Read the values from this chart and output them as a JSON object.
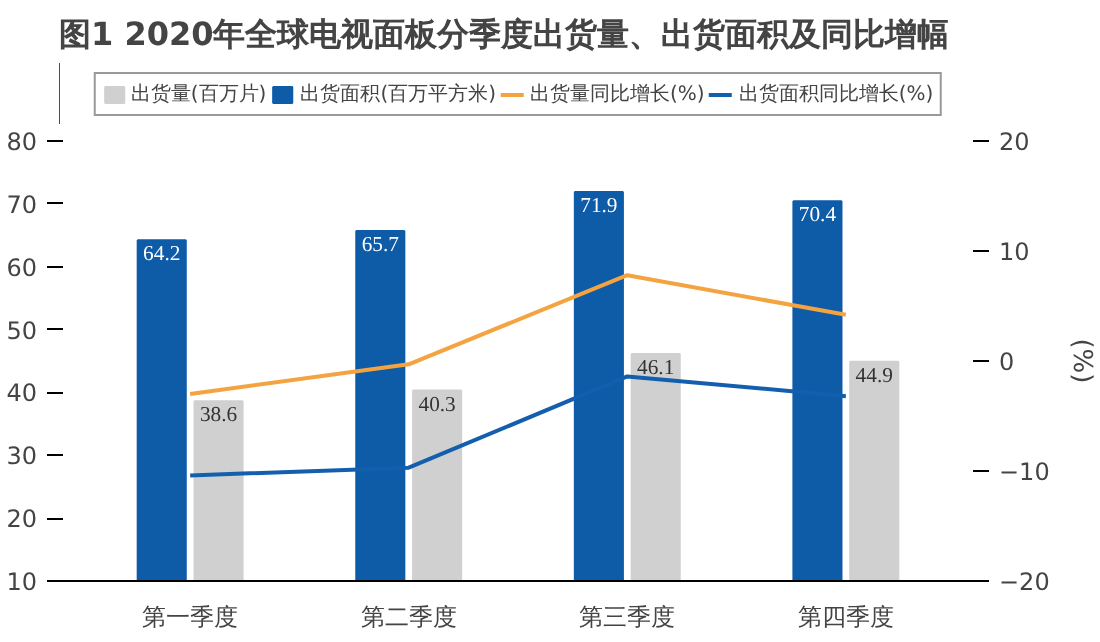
{
  "chart_data": {
    "type": "bar",
    "title": "图1 2020年全球电视面板分季度出货量、出货面积及同比增幅",
    "y2label": "(%)",
    "categories": [
      "第一季度",
      "第二季度",
      "第三季度",
      "第四季度"
    ],
    "series": [
      {
        "name": "出货量(百万片)",
        "color": "#d0d0d0",
        "values": [
          38.6,
          40.3,
          46.1,
          44.9
        ],
        "value_labels": [
          "38.6",
          "40.3",
          "46.1",
          "44.9"
        ]
      },
      {
        "name": "出货面积(百万平方米)",
        "color": "#0e5ba8",
        "values": [
          64.2,
          65.7,
          71.9,
          70.4
        ],
        "value_labels": [
          "64.2",
          "65.7",
          "71.9",
          "70.4"
        ]
      },
      {
        "name": "出货量同比增长(%)",
        "type": "line",
        "axis": "y2",
        "color": "#f4a340",
        "values": [
          -3.0,
          -0.3,
          7.8,
          4.2
        ]
      },
      {
        "name": "出货面积同比增长(%)",
        "type": "line",
        "axis": "y2",
        "color": "#135fad",
        "values": [
          -10.4,
          -9.7,
          -1.4,
          -3.2
        ]
      }
    ],
    "ylim": [
      10,
      80
    ],
    "yticks": [
      10,
      20,
      30,
      40,
      50,
      60,
      70,
      80
    ],
    "y2lim": [
      -20,
      20
    ],
    "y2ticks": [
      -20,
      -10,
      0,
      10,
      20
    ],
    "grid": false,
    "legend": "top"
  }
}
